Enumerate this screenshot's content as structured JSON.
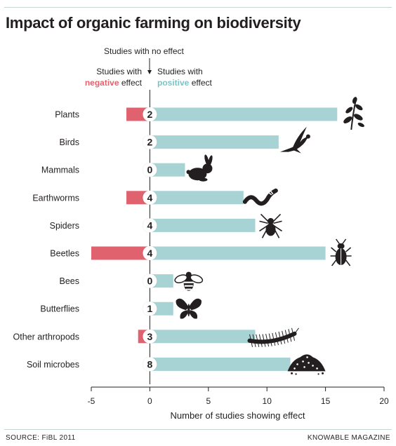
{
  "title": "Impact of organic farming on biodiversity",
  "source": "SOURCE: FiBL 2011",
  "publisher": "KNOWABLE MAGAZINE",
  "annotations": {
    "no_effect": "Studies with no effect",
    "negative_line1": "Studies with",
    "negative_word": "negative",
    "negative_rest": " effect",
    "positive_line1": "Studies with",
    "positive_word": "positive",
    "positive_rest": " effect"
  },
  "colors": {
    "positive": "#a8d3d4",
    "negative": "#e0626e",
    "positive_text": "#7cc3c6",
    "negative_text": "#e0626e",
    "icon": "#231f20"
  },
  "chart_data": {
    "type": "bar",
    "orientation": "horizontal",
    "categories": [
      "Plants",
      "Birds",
      "Mammals",
      "Earthworms",
      "Spiders",
      "Beetles",
      "Bees",
      "Butterflies",
      "Other arthropods",
      "Soil microbes"
    ],
    "series": [
      {
        "name": "Studies with positive effect",
        "values": [
          16,
          11,
          3,
          8,
          9,
          15,
          2,
          2,
          9,
          12
        ]
      },
      {
        "name": "Studies with negative effect",
        "values": [
          -2,
          0,
          0,
          -2,
          0,
          -5,
          0,
          0,
          -1,
          0
        ]
      }
    ],
    "no_effect": [
      2,
      2,
      0,
      4,
      4,
      4,
      0,
      1,
      3,
      8
    ],
    "icons": [
      "plant-icon",
      "bird-icon",
      "rabbit-icon",
      "earthworm-icon",
      "spider-icon",
      "beetle-icon",
      "bee-icon",
      "butterfly-icon",
      "centipede-icon",
      "soil-icon"
    ],
    "xlabel": "Number of studies showing effect",
    "xlim": [
      -5,
      20
    ],
    "xticks": [
      -5,
      0,
      5,
      10,
      15,
      20
    ],
    "grid": false
  }
}
